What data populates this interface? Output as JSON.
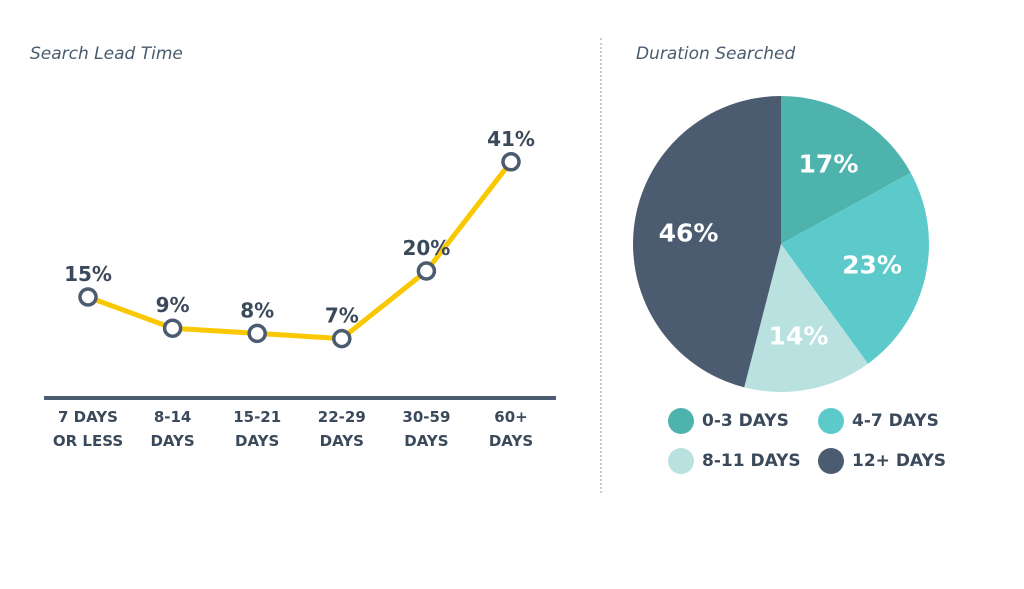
{
  "chart_data": [
    {
      "type": "line",
      "title": "Search Lead Time",
      "categories": [
        "7 DAYS|OR LESS",
        "8-14|DAYS",
        "15-21|DAYS",
        "22-29|DAYS",
        "30-59|DAYS",
        "60+|DAYS"
      ],
      "values": [
        15,
        9,
        8,
        7,
        20,
        41
      ],
      "data_labels": [
        "15%",
        "9%",
        "8%",
        "7%",
        "20%",
        "41%"
      ],
      "unit": "%",
      "line_color": "#f9c800",
      "marker_color": "#4b5c70",
      "axis_color": "#4b5c70"
    },
    {
      "type": "pie",
      "title": "Duration Searched",
      "categories": [
        "0-3 DAYS",
        "4-7 DAYS",
        "8-11 DAYS",
        "12+ DAYS"
      ],
      "values": [
        17,
        23,
        14,
        46
      ],
      "data_labels": [
        "17%",
        "23%",
        "14%",
        "46%"
      ],
      "colors": [
        "#4fb3ad",
        "#5ccacb",
        "#b8e1df",
        "#4b5c70"
      ],
      "legend_placement": "bottom"
    }
  ]
}
